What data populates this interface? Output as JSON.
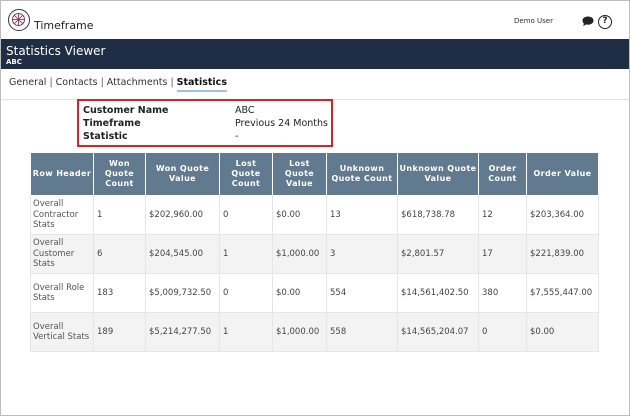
{
  "app": {
    "title": "Timeframe",
    "user": "Demo User"
  },
  "icons": {
    "logo": "radar-logo-icon",
    "chat": "chat-bubble-icon",
    "help": "help-circle-icon",
    "help_glyph": "?"
  },
  "header": {
    "title": "Statistics Viewer",
    "subtitle": "ABC",
    "bg_color": "#1f2d45"
  },
  "tabs": [
    {
      "label": "General",
      "active": false
    },
    {
      "label": "Contacts",
      "active": false
    },
    {
      "label": "Attachments",
      "active": false
    },
    {
      "label": "Statistics",
      "active": true
    }
  ],
  "tab_separator": "|",
  "info": [
    {
      "key": "Customer Name",
      "value": "ABC"
    },
    {
      "key": "Timeframe",
      "value": "Previous 24 Months"
    },
    {
      "key": "Statistic",
      "value": "-"
    }
  ],
  "highlight_color": "#e02020",
  "table": {
    "header_color": "#627a8f",
    "columns": [
      "Row Header",
      "Won Quote Count",
      "Won Quote Value",
      "Lost Quote Count",
      "Lost Quote Value",
      "Unknown Quote Count",
      "Unknown Quote Value",
      "Order Count",
      "Order Value"
    ],
    "rows": [
      [
        "Overall Contractor Stats",
        "1",
        "$202,960.00",
        "0",
        "$0.00",
        "13",
        "$618,738.78",
        "12",
        "$203,364.00"
      ],
      [
        "Overall Customer Stats",
        "6",
        "$204,545.00",
        "1",
        "$1,000.00",
        "3",
        "$2,801.57",
        "17",
        "$221,839.00"
      ],
      [
        "Overall Role Stats",
        "183",
        "$5,009,732.50",
        "0",
        "$0.00",
        "554",
        "$14,561,402.50",
        "380",
        "$7,555,447.00"
      ],
      [
        "Overall Vertical Stats",
        "189",
        "$5,214,277.50",
        "1",
        "$1,000.00",
        "558",
        "$14,565,204.07",
        "0",
        "$0.00"
      ]
    ]
  }
}
